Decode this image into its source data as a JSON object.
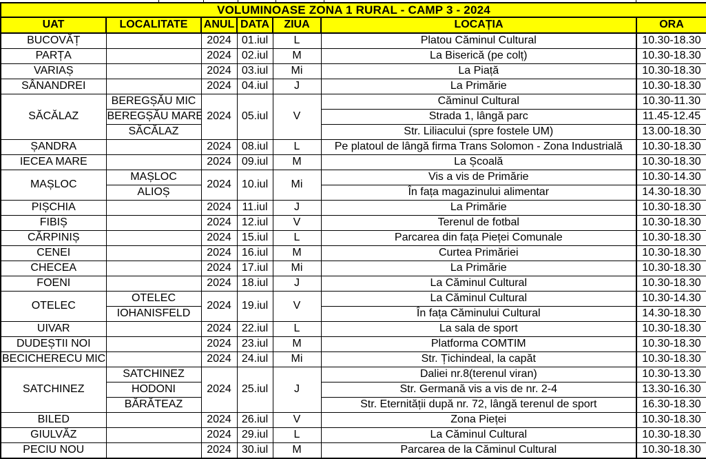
{
  "title": "VOLUMINOASE ZONA 1 RURAL - CAMP 3 - 2024",
  "columns": [
    "UAT",
    "LOCALITATE",
    "ANUL",
    "DATA",
    "ZIUA",
    "LOCAȚIA",
    "ORA"
  ],
  "colors": {
    "header_bg": "#FFFF00",
    "cell_bg": "#FFFFFF",
    "text": "#000000",
    "border": "#000000"
  },
  "groups": [
    {
      "uat": "BUCOVĂȚ",
      "anul": "2024",
      "data": "01.iul",
      "ziua": "L",
      "rows": [
        {
          "localitate": "",
          "locatia": "Platou Căminul Cultural",
          "ora": "10.30-18.30"
        }
      ]
    },
    {
      "uat": "PARȚA",
      "anul": "2024",
      "data": "02.iul",
      "ziua": "M",
      "rows": [
        {
          "localitate": "",
          "locatia": "La Biserică (pe colț)",
          "ora": "10.30-18.30"
        }
      ]
    },
    {
      "uat": "VARIAȘ",
      "anul": "2024",
      "data": "03.iul",
      "ziua": "Mi",
      "rows": [
        {
          "localitate": "",
          "locatia": "La Piață",
          "ora": "10.30-18.30"
        }
      ]
    },
    {
      "uat": "SÂNANDREI",
      "anul": "2024",
      "data": "04.iul",
      "ziua": "J",
      "rows": [
        {
          "localitate": "",
          "locatia": "La Primărie",
          "ora": "10.30-18.30"
        }
      ]
    },
    {
      "uat": "SĂCĂLAZ",
      "anul": "2024",
      "data": "05.iul",
      "ziua": "V",
      "rows": [
        {
          "localitate": "BEREGȘĂU MIC",
          "locatia": "Căminul Cultural",
          "ora": "10.30-11.30"
        },
        {
          "localitate": "BEREGȘĂU MARE",
          "locatia": "Strada 1, lângă parc",
          "ora": "11.45-12.45"
        },
        {
          "localitate": "SĂCĂLAZ",
          "locatia": "Str. Liliacului (spre fostele UM)",
          "ora": "13.00-18.30"
        }
      ]
    },
    {
      "uat": "ȘANDRA",
      "anul": "2024",
      "data": "08.iul",
      "ziua": "L",
      "rows": [
        {
          "localitate": "",
          "locatia": "Pe platoul de lângă firma Trans Solomon - Zona Industrială",
          "ora": "10.30-18.30"
        }
      ]
    },
    {
      "uat": "IECEA MARE",
      "anul": "2024",
      "data": "09.iul",
      "ziua": "M",
      "rows": [
        {
          "localitate": "",
          "locatia": "La Școală",
          "ora": "10.30-18.30"
        }
      ]
    },
    {
      "uat": "MAȘLOC",
      "anul": "2024",
      "data": "10.iul",
      "ziua": "Mi",
      "rows": [
        {
          "localitate": "MAȘLOC",
          "locatia": "Vis a vis de Primărie",
          "ora": "10.30-14.30"
        },
        {
          "localitate": "ALIOȘ",
          "locatia": "În fața magazinului alimentar",
          "ora": "14.30-18.30"
        }
      ]
    },
    {
      "uat": "PIȘCHIA",
      "anul": "2024",
      "data": "11.iul",
      "ziua": "J",
      "rows": [
        {
          "localitate": "",
          "locatia": "La Primărie",
          "ora": "10.30-18.30"
        }
      ]
    },
    {
      "uat": "FIBIȘ",
      "anul": "2024",
      "data": "12.iul",
      "ziua": "V",
      "rows": [
        {
          "localitate": "",
          "locatia": "Terenul de fotbal",
          "ora": "10.30-18.30"
        }
      ]
    },
    {
      "uat": "CĂRPINIȘ",
      "anul": "2024",
      "data": "15.iul",
      "ziua": "L",
      "rows": [
        {
          "localitate": "",
          "locatia": "Parcarea din fața Pieței Comunale",
          "ora": "10.30-18.30"
        }
      ]
    },
    {
      "uat": "CENEI",
      "anul": "2024",
      "data": "16.iul",
      "ziua": "M",
      "rows": [
        {
          "localitate": "",
          "locatia": "Curtea Primăriei",
          "ora": "10.30-18.30"
        }
      ]
    },
    {
      "uat": "CHECEA",
      "anul": "2024",
      "data": "17.iul",
      "ziua": "Mi",
      "rows": [
        {
          "localitate": "",
          "locatia": "La Primărie",
          "ora": "10.30-18.30"
        }
      ]
    },
    {
      "uat": "FOENI",
      "anul": "2024",
      "data": "18.iul",
      "ziua": "J",
      "rows": [
        {
          "localitate": "",
          "locatia": "La Căminul Cultural",
          "ora": "10.30-18.30"
        }
      ]
    },
    {
      "uat": "OTELEC",
      "anul": "2024",
      "data": "19.iul",
      "ziua": "V",
      "rows": [
        {
          "localitate": "OTELEC",
          "locatia": "La Căminul Cultural",
          "ora": "10.30-14.30"
        },
        {
          "localitate": "IOHANISFELD",
          "locatia": "În fața Căminului Cultural",
          "ora": "14.30-18.30"
        }
      ]
    },
    {
      "uat": "UIVAR",
      "anul": "2024",
      "data": "22.iul",
      "ziua": "L",
      "rows": [
        {
          "localitate": "",
          "locatia": "La sala de sport",
          "ora": "10.30-18.30"
        }
      ]
    },
    {
      "uat": "DUDEȘTII NOI",
      "anul": "2024",
      "data": "23.iul",
      "ziua": "M",
      "rows": [
        {
          "localitate": "",
          "locatia": "Platforma COMTIM",
          "ora": "10.30-18.30"
        }
      ]
    },
    {
      "uat": "BECICHERECU MIC",
      "anul": "2024",
      "data": "24.iul",
      "ziua": "Mi",
      "rows": [
        {
          "localitate": "",
          "locatia": "Str. Țichindeal, la capăt",
          "ora": "10.30-18.30"
        }
      ]
    },
    {
      "uat": "SATCHINEZ",
      "anul": "2024",
      "data": "25.iul",
      "ziua": "J",
      "rows": [
        {
          "localitate": "SATCHINEZ",
          "locatia": "Daliei nr.8(terenul viran)",
          "ora": "10.30-13.30"
        },
        {
          "localitate": "HODONI",
          "locatia": "Str. Germană vis a vis de nr. 2-4",
          "ora": "13.30-16.30"
        },
        {
          "localitate": "BĂRĂTEAZ",
          "locatia": "Str. Eternității după nr. 72, lângă terenul de sport",
          "ora": "16.30-18.30"
        }
      ]
    },
    {
      "uat": "BILED",
      "anul": "2024",
      "data": "26.iul",
      "ziua": "V",
      "rows": [
        {
          "localitate": "",
          "locatia": "Zona Pieței",
          "ora": "10.30-18.30"
        }
      ]
    },
    {
      "uat": "GIULVĂZ",
      "anul": "2024",
      "data": "29.iul",
      "ziua": "L",
      "rows": [
        {
          "localitate": "",
          "locatia": "La Căminul Cultural",
          "ora": "10.30-18.30"
        }
      ]
    },
    {
      "uat": "PECIU NOU",
      "anul": "2024",
      "data": "30.iul",
      "ziua": "M",
      "rows": [
        {
          "localitate": "",
          "locatia": "Parcarea de la Căminul Cultural",
          "ora": "10.30-18.30"
        }
      ]
    }
  ]
}
